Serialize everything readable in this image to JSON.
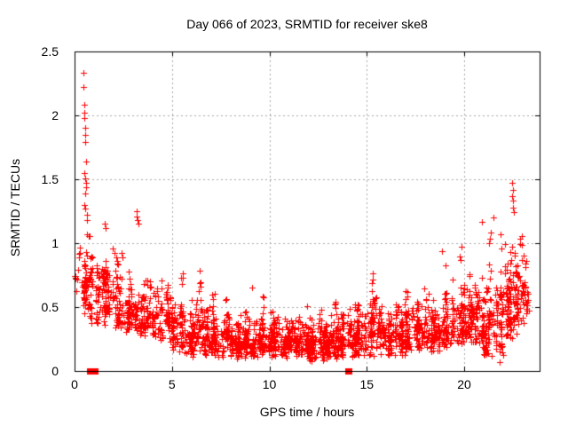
{
  "figure": {
    "title": "Day 066 of 2023, SRMTID for receiver ske8",
    "xlabel": "GPS time / hours",
    "ylabel": "SRMTID / TECUs"
  },
  "chart_data": {
    "type": "scatter",
    "title": "Day 066 of 2023, SRMTID for receiver ske8",
    "xlabel": "GPS time / hours",
    "ylabel": "SRMTID / TECUs",
    "series_name": "SRMTID",
    "xlim": [
      0,
      23.87
    ],
    "ylim": [
      0,
      2.5
    ],
    "xticks": [
      {
        "value": 0,
        "label": "0"
      },
      {
        "value": 5,
        "label": "5"
      },
      {
        "value": 10,
        "label": "10"
      },
      {
        "value": 15,
        "label": "15"
      },
      {
        "value": 20,
        "label": "20"
      }
    ],
    "yticks": [
      {
        "value": 0,
        "label": "0"
      },
      {
        "value": 0.5,
        "label": "0.5"
      },
      {
        "value": 1,
        "label": "1"
      },
      {
        "value": 1.5,
        "label": "1.5"
      },
      {
        "value": 2,
        "label": "2"
      },
      {
        "value": 2.5,
        "label": "2.5"
      }
    ],
    "grid": true,
    "grid_color": "#a8a8a8",
    "marker": {
      "symbol": "plus",
      "color": "#ff0000",
      "size": 7
    },
    "seed": 20230066,
    "bin_format": [
      "x_start",
      "x_end",
      "count",
      "y_bulk_min",
      "y_bulk_max",
      "y_spike_max"
    ],
    "density_bins": [
      [
        0.0,
        0.5,
        22,
        0.45,
        1.05,
        1.1
      ],
      [
        0.5,
        0.8,
        40,
        0.4,
        1.1,
        1.3
      ],
      [
        0.8,
        1.5,
        70,
        0.35,
        1.05,
        1.15
      ],
      [
        1.5,
        2.0,
        60,
        0.35,
        0.95,
        1.12
      ],
      [
        2.0,
        2.5,
        55,
        0.3,
        0.9,
        1.0
      ],
      [
        2.5,
        3.0,
        55,
        0.3,
        0.85,
        0.95
      ],
      [
        3.0,
        3.5,
        50,
        0.28,
        0.8,
        1.17
      ],
      [
        3.5,
        4.0,
        55,
        0.25,
        0.75,
        0.95
      ],
      [
        4.0,
        4.5,
        50,
        0.22,
        0.68,
        0.8
      ],
      [
        4.5,
        5.0,
        50,
        0.2,
        0.6,
        0.75
      ],
      [
        5.0,
        5.5,
        55,
        0.15,
        0.55,
        0.7
      ],
      [
        5.5,
        6.0,
        60,
        0.12,
        0.55,
        0.95
      ],
      [
        6.0,
        6.5,
        65,
        0.1,
        0.6,
        0.95
      ],
      [
        6.5,
        7.0,
        60,
        0.1,
        0.55,
        0.8
      ],
      [
        7.0,
        7.5,
        60,
        0.1,
        0.5,
        0.75
      ],
      [
        7.5,
        8.0,
        60,
        0.1,
        0.5,
        0.7
      ],
      [
        8.0,
        8.5,
        65,
        0.1,
        0.5,
        0.88
      ],
      [
        8.5,
        9.0,
        60,
        0.1,
        0.5,
        0.85
      ],
      [
        9.0,
        9.5,
        60,
        0.1,
        0.48,
        0.75
      ],
      [
        9.5,
        10.0,
        60,
        0.1,
        0.45,
        0.7
      ],
      [
        10.0,
        10.5,
        65,
        0.1,
        0.45,
        0.65
      ],
      [
        10.5,
        11.0,
        60,
        0.1,
        0.45,
        0.62
      ],
      [
        11.0,
        11.5,
        65,
        0.1,
        0.48,
        0.65
      ],
      [
        11.5,
        12.0,
        60,
        0.08,
        0.45,
        0.6
      ],
      [
        12.0,
        12.5,
        70,
        0.08,
        0.35,
        0.5
      ],
      [
        12.5,
        13.0,
        70,
        0.08,
        0.38,
        0.55
      ],
      [
        13.0,
        13.5,
        60,
        0.1,
        0.45,
        0.62
      ],
      [
        13.5,
        14.0,
        60,
        0.1,
        0.5,
        0.88
      ],
      [
        14.0,
        14.5,
        55,
        0.1,
        0.5,
        0.7
      ],
      [
        14.5,
        15.0,
        55,
        0.12,
        0.55,
        0.8
      ],
      [
        15.0,
        15.5,
        55,
        0.12,
        0.6,
        1.02
      ],
      [
        15.5,
        16.0,
        55,
        0.12,
        0.55,
        0.85
      ],
      [
        16.0,
        16.5,
        55,
        0.12,
        0.55,
        0.95
      ],
      [
        16.5,
        17.0,
        55,
        0.12,
        0.55,
        0.8
      ],
      [
        17.0,
        17.5,
        55,
        0.15,
        0.6,
        0.9
      ],
      [
        17.5,
        18.0,
        55,
        0.15,
        0.6,
        0.85
      ],
      [
        18.0,
        18.5,
        55,
        0.15,
        0.65,
        1.0
      ],
      [
        18.5,
        19.0,
        55,
        0.15,
        0.65,
        1.12
      ],
      [
        19.0,
        19.5,
        55,
        0.18,
        0.7,
        1.0
      ],
      [
        19.5,
        20.0,
        55,
        0.2,
        0.7,
        1.15
      ],
      [
        20.0,
        20.5,
        60,
        0.2,
        0.75,
        1.1
      ],
      [
        20.5,
        21.0,
        60,
        0.2,
        0.8,
        1.18
      ],
      [
        21.0,
        21.5,
        65,
        0.05,
        0.85,
        1.15
      ],
      [
        21.5,
        22.0,
        70,
        0.05,
        0.9,
        1.2
      ],
      [
        22.0,
        22.5,
        70,
        0.25,
        0.95,
        1.28
      ],
      [
        22.5,
        23.0,
        60,
        0.3,
        1.0,
        1.1
      ],
      [
        23.0,
        23.4,
        25,
        0.35,
        0.95,
        1.05
      ]
    ],
    "feature_points": [
      [
        0.45,
        2.33
      ],
      [
        0.46,
        2.22
      ],
      [
        0.5,
        2.08
      ],
      [
        0.5,
        2.02
      ],
      [
        0.52,
        1.98
      ],
      [
        0.53,
        1.9
      ],
      [
        0.55,
        1.85
      ],
      [
        0.56,
        1.79
      ],
      [
        0.6,
        1.64
      ],
      [
        0.5,
        1.55
      ],
      [
        0.54,
        1.51
      ],
      [
        0.57,
        1.47
      ],
      [
        0.6,
        1.44
      ],
      [
        0.55,
        1.39
      ],
      [
        0.52,
        1.3
      ],
      [
        0.56,
        1.27
      ],
      [
        0.62,
        1.22
      ],
      [
        0.66,
        1.18
      ],
      [
        1.55,
        1.15
      ],
      [
        1.6,
        1.12
      ],
      [
        3.18,
        1.25
      ],
      [
        3.2,
        1.21
      ],
      [
        3.25,
        1.18
      ],
      [
        3.3,
        1.15
      ],
      [
        22.45,
        1.47
      ],
      [
        22.5,
        1.42
      ],
      [
        22.45,
        1.37
      ],
      [
        22.5,
        1.33
      ],
      [
        22.52,
        1.28
      ],
      [
        22.55,
        1.24
      ],
      [
        21.5,
        1.2
      ],
      [
        20.9,
        1.17
      ]
    ],
    "zero_run_markers": [
      {
        "x_start": 0.62,
        "x_end": 1.22,
        "y": 0
      },
      {
        "x_start": 13.9,
        "x_end": 14.25,
        "y": 0
      }
    ]
  }
}
